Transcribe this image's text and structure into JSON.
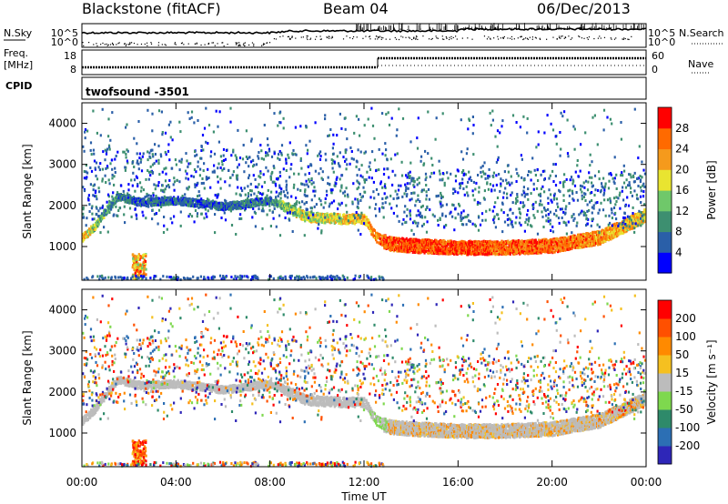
{
  "header": {
    "station": "Blackstone (fitACF)",
    "beam": "Beam 04",
    "date": "06/Dec/2013"
  },
  "summary_panel": {
    "left_label_1": "N.Sky",
    "left_label_2": "Freq.",
    "left_label_3": "[MHz]",
    "left_label_4": "CPID",
    "right_label_1": "N.Search",
    "right_label_2": "Nave",
    "cpid_text": "twofsound  -3501",
    "noise_ticks": [
      "10^5",
      "10^0"
    ],
    "freq_ticks": [
      "18",
      "8"
    ],
    "nave_ticks": [
      "60",
      "0"
    ]
  },
  "chart_data": [
    {
      "type": "heatmap",
      "panel": "power",
      "ylabel": "Slant Range [km]",
      "xlabel": "Time UT",
      "xlim": [
        0,
        24
      ],
      "ylim": [
        180,
        4500
      ],
      "x_ticks": [
        "00:00",
        "04:00",
        "08:00",
        "12:00",
        "16:00",
        "20:00",
        "00:00"
      ],
      "y_ticks": [
        1000,
        2000,
        3000,
        4000
      ],
      "colorbar": {
        "label": "Power [dB]",
        "ticks": [
          "4",
          "8",
          "12",
          "16",
          "20",
          "24",
          "28"
        ],
        "range": [
          0,
          30
        ],
        "colors": [
          "#0000ff",
          "#2a5fa8",
          "#3d8f70",
          "#6fc86a",
          "#e9e430",
          "#f59a1c",
          "#ff6a00",
          "#ff0000"
        ]
      },
      "main_echo_band": [
        {
          "t": 0.0,
          "range": 1250,
          "power": 20
        },
        {
          "t": 0.5,
          "range": 1500,
          "power": 14
        },
        {
          "t": 1.0,
          "range": 1900,
          "power": 10
        },
        {
          "t": 1.5,
          "range": 2250,
          "power": 8
        },
        {
          "t": 2.5,
          "range": 2100,
          "power": 6
        },
        {
          "t": 4.0,
          "range": 2150,
          "power": 6
        },
        {
          "t": 6.0,
          "range": 2000,
          "power": 6
        },
        {
          "t": 8.0,
          "range": 2150,
          "power": 8
        },
        {
          "t": 8.8,
          "range": 1950,
          "power": 14
        },
        {
          "t": 9.5,
          "range": 1750,
          "power": 16
        },
        {
          "t": 11.0,
          "range": 1700,
          "power": 18
        },
        {
          "t": 12.0,
          "range": 1700,
          "power": 20
        },
        {
          "t": 12.5,
          "range": 1250,
          "power": 22
        },
        {
          "t": 13.0,
          "range": 1100,
          "power": 26
        },
        {
          "t": 14.0,
          "range": 1050,
          "power": 26
        },
        {
          "t": 16.0,
          "range": 1000,
          "power": 26
        },
        {
          "t": 18.0,
          "range": 1000,
          "power": 24
        },
        {
          "t": 20.0,
          "range": 1050,
          "power": 24
        },
        {
          "t": 22.0,
          "range": 1250,
          "power": 22
        },
        {
          "t": 24.0,
          "range": 1800,
          "power": 18
        }
      ]
    },
    {
      "type": "heatmap",
      "panel": "velocity",
      "ylabel": "Slant Range [km]",
      "xlabel": "Time UT",
      "xlim": [
        0,
        24
      ],
      "ylim": [
        180,
        4500
      ],
      "x_ticks": [
        "00:00",
        "04:00",
        "08:00",
        "12:00",
        "16:00",
        "20:00",
        "00:00"
      ],
      "y_ticks": [
        1000,
        2000,
        3000,
        4000
      ],
      "colorbar": {
        "label": "Velocity [m s⁻¹]",
        "ticks": [
          "200",
          "100",
          "50",
          "15",
          "-15",
          "-50",
          "-100",
          "-200"
        ],
        "range": [
          -250,
          250
        ],
        "colors": [
          "#2e26b8",
          "#2c6fb4",
          "#2e8a6a",
          "#7ed84e",
          "#bcbcbc",
          "#f5c020",
          "#ff8a00",
          "#ff5000",
          "#ff0000"
        ]
      }
    }
  ]
}
